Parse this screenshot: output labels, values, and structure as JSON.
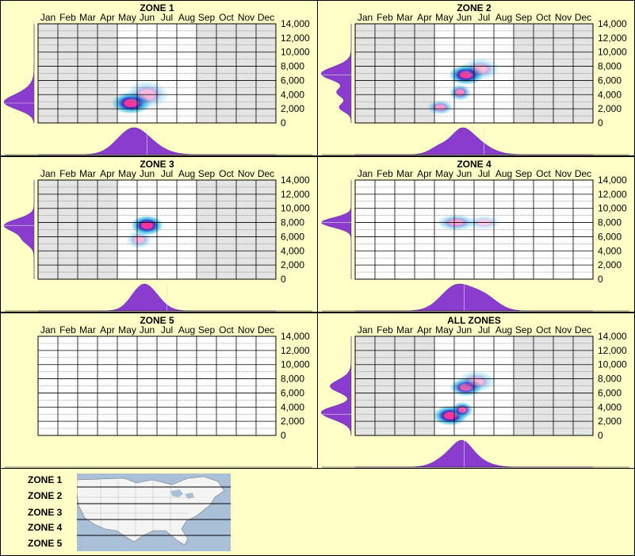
{
  "months": [
    "Jan",
    "Feb",
    "Mar",
    "Apr",
    "May",
    "Jun",
    "Jul",
    "Aug",
    "Sep",
    "Oct",
    "Nov",
    "Dec"
  ],
  "y_ticks": [
    "0",
    "2,000",
    "4,000",
    "6,000",
    "8,000",
    "10,000",
    "12,000",
    "14,000"
  ],
  "legend": {
    "zones": [
      "ZONE 1",
      "ZONE 2",
      "ZONE 3",
      "ZONE 4",
      "ZONE 5"
    ]
  },
  "colors": {
    "background": "#ffffc8",
    "grey_plot": "#e4e4e4",
    "white_plot": "#ffffff",
    "violin": "#8a3ccf",
    "core": "#ff2e9a",
    "mid": "#2323c8",
    "outer": "#29b6e0"
  },
  "chart_data": [
    {
      "type": "heatmap",
      "title": "ZONE 1",
      "x_categories": [
        "Jan",
        "Feb",
        "Mar",
        "Apr",
        "May",
        "Jun",
        "Jul",
        "Aug",
        "Sep",
        "Oct",
        "Nov",
        "Dec"
      ],
      "ylim": [
        0,
        14000
      ],
      "y_ticks": [
        0,
        2000,
        4000,
        6000,
        8000,
        10000,
        12000,
        14000
      ],
      "grid": true,
      "shaded_months": [
        "Jan",
        "Feb",
        "Mar",
        "Apr",
        "Sep",
        "Oct",
        "Nov",
        "Dec"
      ],
      "density_peaks": [
        {
          "month": 5.2,
          "y": 2800,
          "intensity": 1.0,
          "spread_m": 0.9,
          "spread_y": 1200
        },
        {
          "month": 6.0,
          "y": 4000,
          "intensity": 0.35,
          "spread_m": 1.0,
          "spread_y": 1500
        }
      ],
      "month_distribution_peak": "Jun",
      "y_distribution_peak": 2800
    },
    {
      "type": "heatmap",
      "title": "ZONE 2",
      "x_categories": [
        "Jan",
        "Feb",
        "Mar",
        "Apr",
        "May",
        "Jun",
        "Jul",
        "Aug",
        "Sep",
        "Oct",
        "Nov",
        "Dec"
      ],
      "ylim": [
        0,
        14000
      ],
      "y_ticks": [
        0,
        2000,
        4000,
        6000,
        8000,
        10000,
        12000,
        14000
      ],
      "grid": true,
      "shaded_months": [
        "Jan",
        "Feb",
        "Mar",
        "Apr",
        "Sep",
        "Oct",
        "Nov",
        "Dec"
      ],
      "density_peaks": [
        {
          "month": 6.1,
          "y": 6800,
          "intensity": 1.0,
          "spread_m": 0.8,
          "spread_y": 1100
        },
        {
          "month": 5.8,
          "y": 4300,
          "intensity": 0.6,
          "spread_m": 0.5,
          "spread_y": 900
        },
        {
          "month": 4.8,
          "y": 2200,
          "intensity": 0.5,
          "spread_m": 0.6,
          "spread_y": 800
        },
        {
          "month": 6.8,
          "y": 7600,
          "intensity": 0.35,
          "spread_m": 0.9,
          "spread_y": 1200
        }
      ],
      "month_distribution_peak": "Jul",
      "y_distribution_peak": 6800
    },
    {
      "type": "heatmap",
      "title": "ZONE 3",
      "x_categories": [
        "Jan",
        "Feb",
        "Mar",
        "Apr",
        "May",
        "Jun",
        "Jul",
        "Aug",
        "Sep",
        "Oct",
        "Nov",
        "Dec"
      ],
      "ylim": [
        0,
        14000
      ],
      "y_ticks": [
        0,
        2000,
        4000,
        6000,
        8000,
        10000,
        12000,
        14000
      ],
      "grid": true,
      "shaded_months": [
        "Jan",
        "Feb",
        "Mar",
        "Apr",
        "Sep",
        "Oct",
        "Nov",
        "Dec"
      ],
      "density_peaks": [
        {
          "month": 6.0,
          "y": 7600,
          "intensity": 1.0,
          "spread_m": 0.75,
          "spread_y": 1100
        },
        {
          "month": 5.6,
          "y": 5600,
          "intensity": 0.35,
          "spread_m": 0.6,
          "spread_y": 1000
        }
      ],
      "month_distribution_peak": "Jul",
      "y_distribution_peak": 7600
    },
    {
      "type": "heatmap",
      "title": "ZONE 4",
      "x_categories": [
        "Jan",
        "Feb",
        "Mar",
        "Apr",
        "May",
        "Jun",
        "Jul",
        "Aug",
        "Sep",
        "Oct",
        "Nov",
        "Dec"
      ],
      "ylim": [
        0,
        14000
      ],
      "y_ticks": [
        0,
        2000,
        4000,
        6000,
        8000,
        10000,
        12000,
        14000
      ],
      "grid": true,
      "shaded_months": [],
      "density_peaks": [
        {
          "month": 5.6,
          "y": 8000,
          "intensity": 0.45,
          "spread_m": 0.9,
          "spread_y": 900
        },
        {
          "month": 7.0,
          "y": 8000,
          "intensity": 0.25,
          "spread_m": 0.8,
          "spread_y": 800
        }
      ],
      "month_distribution_peak": "Jun",
      "y_distribution_peak": 8000
    },
    {
      "type": "heatmap",
      "title": "ZONE 5",
      "x_categories": [
        "Jan",
        "Feb",
        "Mar",
        "Apr",
        "May",
        "Jun",
        "Jul",
        "Aug",
        "Sep",
        "Oct",
        "Nov",
        "Dec"
      ],
      "ylim": [
        0,
        14000
      ],
      "y_ticks": [
        0,
        2000,
        4000,
        6000,
        8000,
        10000,
        12000,
        14000
      ],
      "grid": true,
      "shaded_months": [],
      "density_peaks": [],
      "month_distribution_peak": null,
      "y_distribution_peak": null
    },
    {
      "type": "heatmap",
      "title": "ALL ZONES",
      "x_categories": [
        "Jan",
        "Feb",
        "Mar",
        "Apr",
        "May",
        "Jun",
        "Jul",
        "Aug",
        "Sep",
        "Oct",
        "Nov",
        "Dec"
      ],
      "ylim": [
        0,
        14000
      ],
      "y_ticks": [
        0,
        2000,
        4000,
        6000,
        8000,
        10000,
        12000,
        14000
      ],
      "grid": true,
      "shaded_months": [
        "Jan",
        "Feb",
        "Mar",
        "Apr",
        "Sep",
        "Oct",
        "Nov",
        "Dec"
      ],
      "density_peaks": [
        {
          "month": 5.3,
          "y": 2800,
          "intensity": 1.0,
          "spread_m": 0.8,
          "spread_y": 1100
        },
        {
          "month": 5.9,
          "y": 3600,
          "intensity": 0.8,
          "spread_m": 0.5,
          "spread_y": 900
        },
        {
          "month": 6.1,
          "y": 6800,
          "intensity": 0.85,
          "spread_m": 0.75,
          "spread_y": 1000
        },
        {
          "month": 6.6,
          "y": 7600,
          "intensity": 0.35,
          "spread_m": 0.9,
          "spread_y": 1200
        }
      ],
      "month_distribution_peak": "Jun",
      "y_distribution_peak": 3000
    }
  ]
}
